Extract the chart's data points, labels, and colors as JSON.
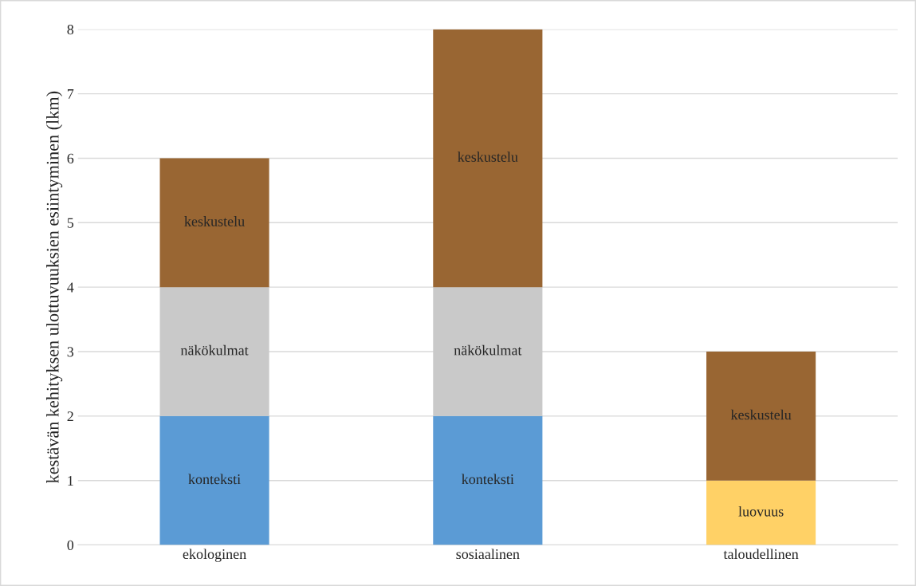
{
  "chart_data": {
    "type": "bar",
    "stacked": true,
    "ylabel": "kestävän kehityksen ulottuvuuksien esiintyminen (lkm)",
    "categories": [
      "ekologinen",
      "sosiaalinen",
      "taloudellinen"
    ],
    "series": [
      {
        "name": "konteksti",
        "color": "#5b9bd5",
        "values": [
          2,
          2,
          null
        ]
      },
      {
        "name": "luovuus",
        "color": "#ffd166",
        "values": [
          null,
          null,
          1
        ]
      },
      {
        "name": "näkökulmat",
        "color": "#c9c9c9",
        "values": [
          2,
          2,
          null
        ]
      },
      {
        "name": "keskustelu",
        "color": "#996633",
        "values": [
          2,
          4,
          2
        ]
      }
    ],
    "ylim": [
      0,
      8
    ],
    "yticks": [
      0,
      1,
      2,
      3,
      4,
      5,
      6,
      7,
      8
    ],
    "grid": "y",
    "legend": false
  }
}
